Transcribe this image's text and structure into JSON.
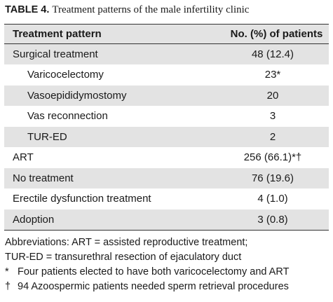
{
  "title": {
    "label": "TABLE 4.",
    "text": "Treatment patterns of the male infertility clinic"
  },
  "table": {
    "header": [
      "Treatment pattern",
      "No. (%) of patients"
    ],
    "rows": [
      [
        "Surgical treatment",
        "48 (12.4)"
      ],
      [
        "Varicocelectomy",
        "23*"
      ],
      [
        "Vasoepididymostomy",
        "20"
      ],
      [
        "Vas reconnection",
        "3"
      ],
      [
        "TUR-ED",
        "2"
      ],
      [
        "ART",
        "256 (66.1)*†"
      ],
      [
        "No treatment",
        "76 (19.6)"
      ],
      [
        "Erectile dysfunction treatment",
        "4 (1.0)"
      ],
      [
        "Adoption",
        "3 (0.8)"
      ]
    ]
  },
  "footnotes": {
    "abbreviations": [
      "Abbreviations: ART = assisted reproductive treatment;",
      "TUR-ED = transurethral resection of ejaculatory duct"
    ],
    "notes": [
      {
        "symbol": "*",
        "text": "Four patients elected to have both varicocelectomy and ART"
      },
      {
        "symbol": "†",
        "text": "94 Azoospermic patients needed sperm retrieval procedures"
      }
    ]
  }
}
